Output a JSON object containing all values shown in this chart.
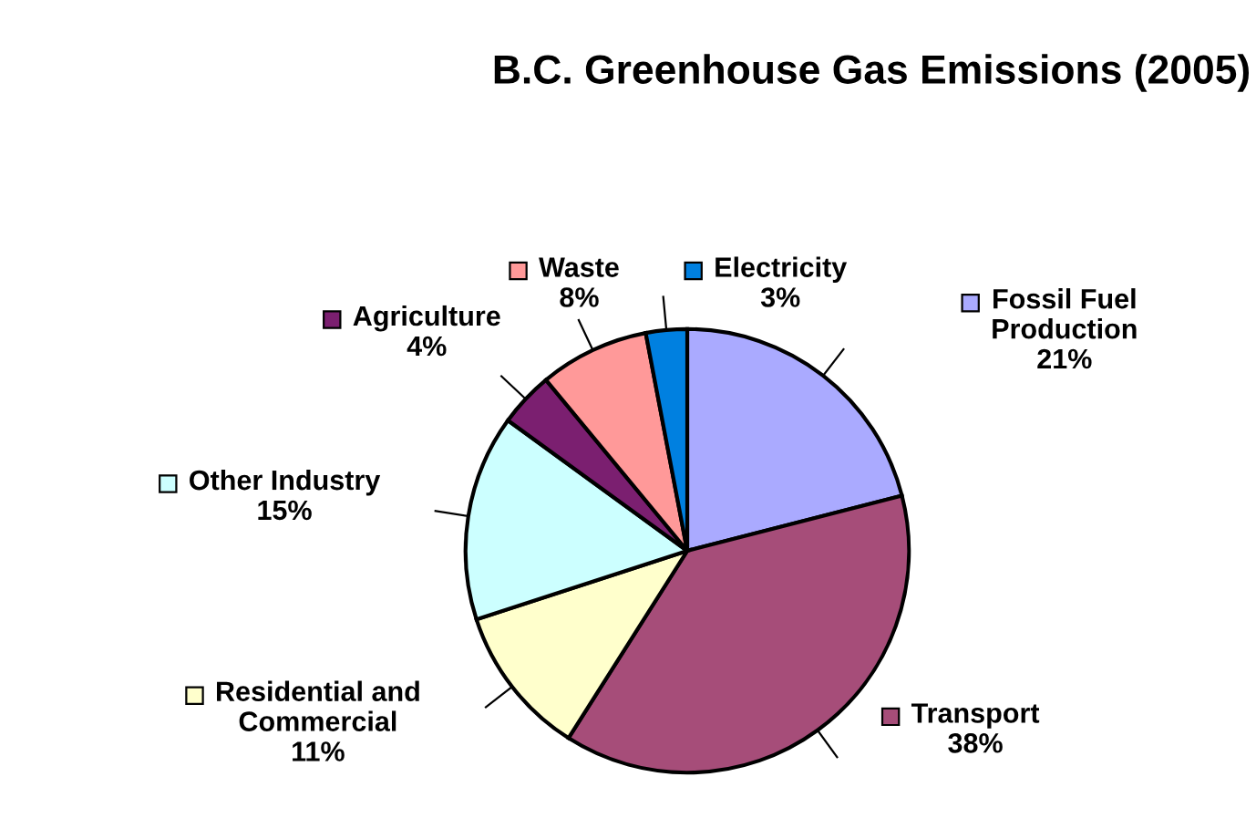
{
  "chart_data": {
    "type": "pie",
    "title": "B.C. Greenhouse Gas Emissions (2005)",
    "categories": [
      "Fossil Fuel\nProduction",
      "Transport",
      "Residential and\nCommercial",
      "Other Industry",
      "Agriculture",
      "Waste",
      "Electricity"
    ],
    "values": [
      21,
      38,
      11,
      15,
      4,
      8,
      3
    ],
    "value_labels": [
      "21%",
      "38%",
      "11%",
      "15%",
      "4%",
      "8%",
      "3%"
    ],
    "legend": "left",
    "colors": [
      "#aaaaff",
      "#a64d79",
      "#ffffcc",
      "#ccffff",
      "#7b1f70",
      "#ff9999",
      "#0080e0"
    ]
  }
}
